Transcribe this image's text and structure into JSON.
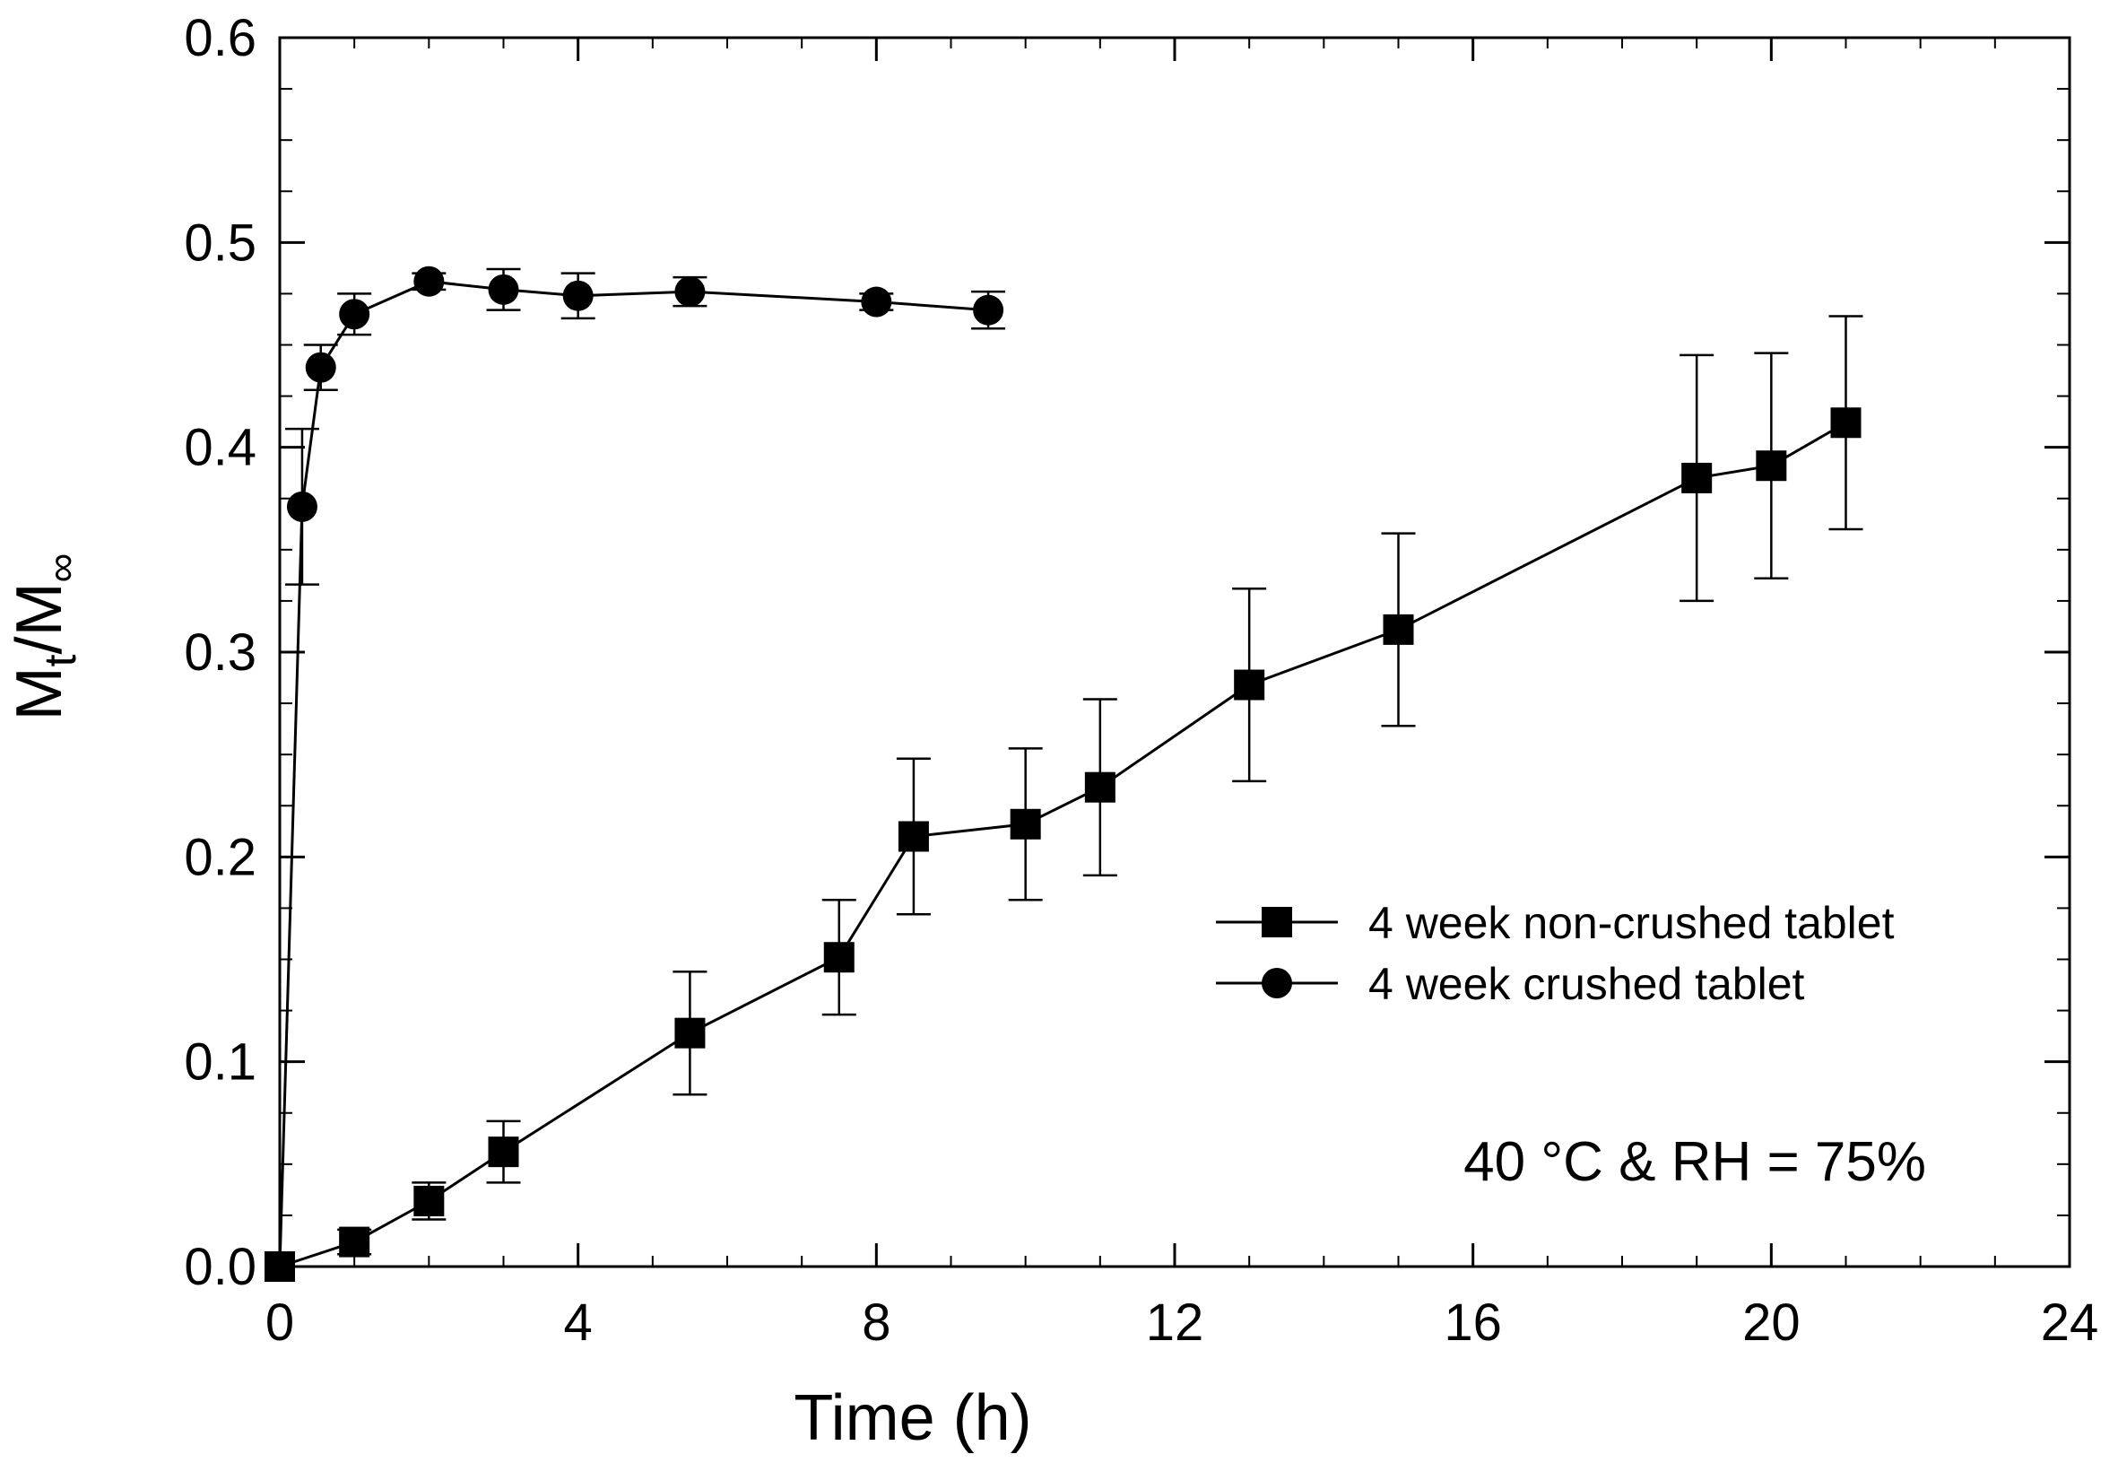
{
  "chart_data": {
    "type": "line",
    "xlabel": "Time (h)",
    "ylabel": {
      "main": "M",
      "sub1": "t",
      "slash": "/M",
      "sub2": "∞"
    },
    "xlim": [
      0,
      24
    ],
    "ylim": [
      0,
      0.6
    ],
    "x_ticks": [
      0,
      4,
      8,
      12,
      16,
      20,
      24
    ],
    "x_tick_labels": [
      "0",
      "4",
      "8",
      "12",
      "16",
      "20",
      "24"
    ],
    "x_minor_step": 1,
    "y_ticks": [
      0,
      0.1,
      0.2,
      0.3,
      0.4,
      0.5,
      0.6
    ],
    "y_tick_labels": [
      "0.0",
      "0.1",
      "0.2",
      "0.3",
      "0.4",
      "0.5",
      "0.6"
    ],
    "y_minor_step": 0.025,
    "grid": false,
    "legend_position": "center-right",
    "annotation": "40 °C & RH = 75%",
    "colors": {
      "line": "#000000",
      "background": "#ffffff"
    },
    "series": [
      {
        "name": "4 week non-crushed tablet",
        "marker": "square",
        "x": [
          0,
          1,
          2,
          3,
          5.5,
          7.5,
          8.5,
          10,
          11,
          13,
          15,
          19,
          20,
          21
        ],
        "y": [
          0,
          0.012,
          0.032,
          0.056,
          0.114,
          0.151,
          0.21,
          0.216,
          0.234,
          0.284,
          0.311,
          0.385,
          0.391,
          0.412
        ],
        "err": [
          0,
          0.006,
          0.009,
          0.015,
          0.03,
          0.028,
          0.038,
          0.037,
          0.043,
          0.047,
          0.047,
          0.06,
          0.055,
          0.052
        ]
      },
      {
        "name": "4 week crushed tablet",
        "marker": "circle",
        "x": [
          0,
          0.3,
          0.55,
          1,
          2,
          3,
          4,
          5.5,
          8,
          9.5
        ],
        "y": [
          0,
          0.371,
          0.439,
          0.465,
          0.481,
          0.477,
          0.474,
          0.476,
          0.471,
          0.467
        ],
        "err": [
          0,
          0.038,
          0.011,
          0.01,
          0.004,
          0.01,
          0.011,
          0.007,
          0.004,
          0.009
        ]
      }
    ]
  }
}
